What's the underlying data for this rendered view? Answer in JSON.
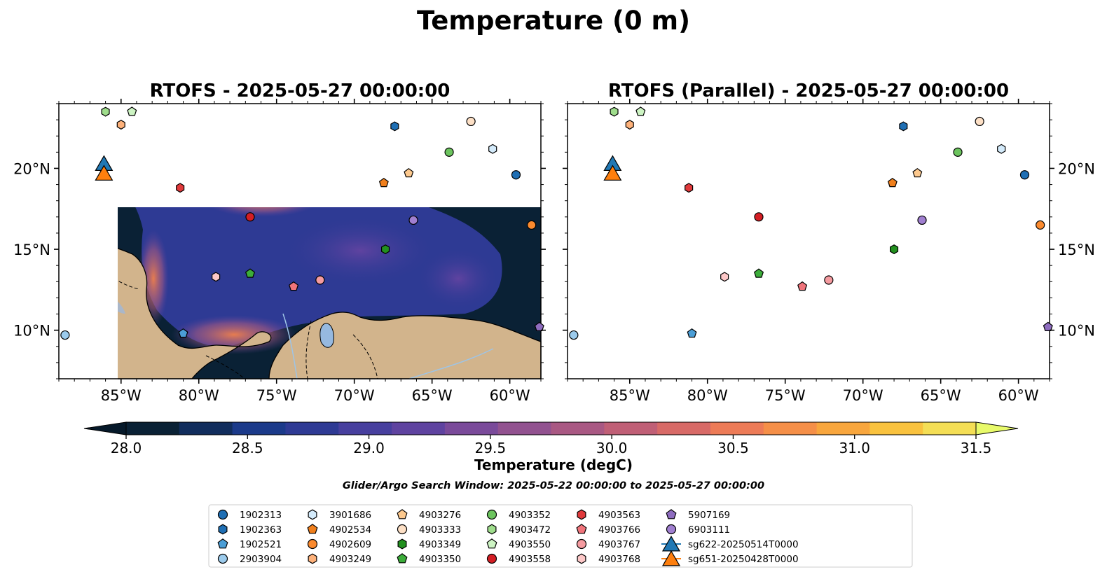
{
  "figure": {
    "suptitle": "Temperature (0 m)",
    "subtitle": "Glider/Argo Search Window: 2025-05-22 00:00:00 to 2025-05-27 00:00:00"
  },
  "colors": {
    "ocean_deep": "#0a2135",
    "land": "#d2b48c",
    "water_body": "#96b9e0",
    "river": "#9ec4e6",
    "warm": "#e9714f",
    "hot": "#f5cb3f"
  },
  "panels": [
    {
      "title": "RTOFS - 2025-05-27 00:00:00"
    },
    {
      "title": "RTOFS (Parallel) - 2025-05-27 00:00:00"
    }
  ],
  "map_axes": {
    "lon_range": [
      -89,
      -58
    ],
    "lat_range": [
      7,
      24
    ],
    "x_ticks": [
      {
        "value": -85,
        "label": "85°W"
      },
      {
        "value": -80,
        "label": "80°W"
      },
      {
        "value": -75,
        "label": "75°W"
      },
      {
        "value": -70,
        "label": "70°W"
      },
      {
        "value": -65,
        "label": "65°W"
      },
      {
        "value": -60,
        "label": "60°W"
      }
    ],
    "y_ticks": [
      {
        "value": 20,
        "label": "20°N"
      },
      {
        "value": 15,
        "label": "15°N"
      },
      {
        "value": 10,
        "label": "10°N"
      }
    ]
  },
  "colorbar": {
    "label": "Temperature (degC)",
    "range": [
      28.0,
      31.5
    ],
    "extend": "both",
    "ticks": [
      "28.0",
      "28.5",
      "29.0",
      "29.5",
      "30.0",
      "30.5",
      "31.0",
      "31.5"
    ],
    "tick_values": [
      28.0,
      28.5,
      29.0,
      29.5,
      30.0,
      30.5,
      31.0,
      31.5
    ],
    "level_colors": [
      "#0a2135",
      "#112d5d",
      "#1b3a8a",
      "#2e3a94",
      "#473f9e",
      "#5f43a0",
      "#7a4a9a",
      "#925290",
      "#a95883",
      "#c05f76",
      "#d86a67",
      "#ed7b57",
      "#f58f48",
      "#f8a63d",
      "#f9c23e",
      "#f4de55"
    ],
    "under_color": "#06192a",
    "over_color": "#e8fa6a"
  },
  "legend": {
    "items": [
      {
        "label": "1902313",
        "color": "#1f6fb4",
        "marker": "circle"
      },
      {
        "label": "1902363",
        "color": "#1f6fb4",
        "marker": "hexagon"
      },
      {
        "label": "1902521",
        "color": "#4b9ed6",
        "marker": "pentagon"
      },
      {
        "label": "2903904",
        "color": "#9ccbec",
        "marker": "circle"
      },
      {
        "label": "3901686",
        "color": "#d4ebfb",
        "marker": "hexagon"
      },
      {
        "label": "4902534",
        "color": "#f07f1c",
        "marker": "pentagon"
      },
      {
        "label": "4902609",
        "color": "#fb8a2e",
        "marker": "circle"
      },
      {
        "label": "4903249",
        "color": "#fdb17a",
        "marker": "hexagon"
      },
      {
        "label": "4903276",
        "color": "#fdc98e",
        "marker": "pentagon"
      },
      {
        "label": "4903333",
        "color": "#fde0c6",
        "marker": "circle"
      },
      {
        "label": "4903349",
        "color": "#22901f",
        "marker": "hexagon"
      },
      {
        "label": "4903350",
        "color": "#3cad3a",
        "marker": "pentagon"
      },
      {
        "label": "4903352",
        "color": "#6cc45e",
        "marker": "circle"
      },
      {
        "label": "4903472",
        "color": "#9fdd8c",
        "marker": "hexagon"
      },
      {
        "label": "4903550",
        "color": "#cdf4c3",
        "marker": "pentagon"
      },
      {
        "label": "4903558",
        "color": "#d41e24",
        "marker": "circle"
      },
      {
        "label": "4903563",
        "color": "#e0393b",
        "marker": "hexagon"
      },
      {
        "label": "4903766",
        "color": "#f0747b",
        "marker": "pentagon"
      },
      {
        "label": "4903767",
        "color": "#f59ba0",
        "marker": "circle"
      },
      {
        "label": "4903768",
        "color": "#fdc8c8",
        "marker": "hexagon"
      },
      {
        "label": "5907169",
        "color": "#8e6cbf",
        "marker": "pentagon"
      },
      {
        "label": "6903111",
        "color": "#a07fd0",
        "marker": "circle"
      },
      {
        "label": "sg622-20250514T0000",
        "color": "#2078b4",
        "marker": "triangle"
      },
      {
        "label": "sg651-20250428T0000",
        "color": "#fe7f0e",
        "marker": "triangle"
      }
    ]
  },
  "observations": [
    {
      "id": "4903472",
      "lon": -86.0,
      "lat": 23.5,
      "color": "#9fdd8c",
      "marker": "hexagon"
    },
    {
      "id": "4903550",
      "lon": -84.3,
      "lat": 23.5,
      "color": "#cdf4c3",
      "marker": "pentagon"
    },
    {
      "id": "4903249",
      "lon": -85.0,
      "lat": 22.7,
      "color": "#fdb17a",
      "marker": "hexagon"
    },
    {
      "id": "1902363",
      "lon": -67.4,
      "lat": 22.6,
      "color": "#1f6fb4",
      "marker": "hexagon"
    },
    {
      "id": "4903333",
      "lon": -62.5,
      "lat": 22.9,
      "color": "#fde0c6",
      "marker": "circle"
    },
    {
      "id": "3901686",
      "lon": -61.1,
      "lat": 21.2,
      "color": "#d4ebfb",
      "marker": "hexagon"
    },
    {
      "id": "4903352",
      "lon": -63.9,
      "lat": 21.0,
      "color": "#6cc45e",
      "marker": "circle"
    },
    {
      "id": "1902313",
      "lon": -59.6,
      "lat": 19.6,
      "color": "#1f6fb4",
      "marker": "circle"
    },
    {
      "id": "4903276",
      "lon": -66.5,
      "lat": 19.7,
      "color": "#fdc98e",
      "marker": "pentagon"
    },
    {
      "id": "4902534",
      "lon": -68.1,
      "lat": 19.1,
      "color": "#f07f1c",
      "marker": "pentagon"
    },
    {
      "id": "4903563",
      "lon": -81.2,
      "lat": 18.8,
      "color": "#e0393b",
      "marker": "hexagon"
    },
    {
      "id": "4903558",
      "lon": -76.7,
      "lat": 17.0,
      "color": "#d41e24",
      "marker": "circle"
    },
    {
      "id": "6903111",
      "lon": -66.2,
      "lat": 16.8,
      "color": "#a07fd0",
      "marker": "circle"
    },
    {
      "id": "4902609",
      "lon": -58.6,
      "lat": 16.5,
      "color": "#fb8a2e",
      "marker": "circle"
    },
    {
      "id": "4903349",
      "lon": -68.0,
      "lat": 15.0,
      "color": "#22901f",
      "marker": "hexagon"
    },
    {
      "id": "4903350",
      "lon": -76.7,
      "lat": 13.5,
      "color": "#3cad3a",
      "marker": "pentagon"
    },
    {
      "id": "4903768",
      "lon": -78.9,
      "lat": 13.3,
      "color": "#fdc8c8",
      "marker": "hexagon"
    },
    {
      "id": "4903766",
      "lon": -73.9,
      "lat": 12.7,
      "color": "#f0747b",
      "marker": "pentagon"
    },
    {
      "id": "4903767",
      "lon": -72.2,
      "lat": 13.1,
      "color": "#f59ba0",
      "marker": "circle"
    },
    {
      "id": "1902521",
      "lon": -81.0,
      "lat": 9.8,
      "color": "#4b9ed6",
      "marker": "pentagon"
    },
    {
      "id": "2903904",
      "lon": -88.6,
      "lat": 9.7,
      "color": "#9ccbec",
      "marker": "circle"
    },
    {
      "id": "5907169",
      "lon": -58.1,
      "lat": 10.2,
      "color": "#8e6cbf",
      "marker": "pentagon"
    }
  ],
  "gliders": [
    {
      "id": "sg622-20250514T0000",
      "lon": -86.1,
      "lat": 20.3,
      "color": "#2078b4"
    },
    {
      "id": "sg651-20250428T0000",
      "lon": -86.1,
      "lat": 19.7,
      "color": "#fe7f0e"
    }
  ]
}
